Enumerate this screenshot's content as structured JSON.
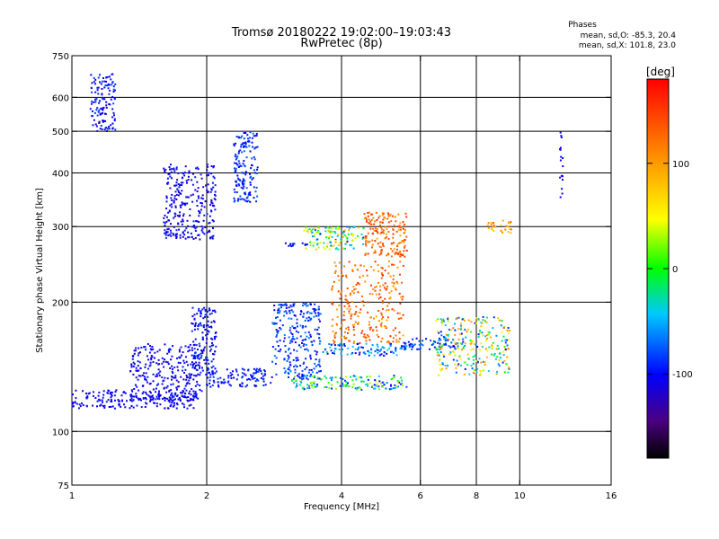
{
  "chart_data": {
    "type": "scatter",
    "title": "Tromsø 20180222 19:02:00–19:03:43",
    "subtitle": "RwPretec (8p)",
    "xlabel": "Frequency [MHz]",
    "ylabel": "Stationary phase Virtual Height [km]",
    "x_scale": "log",
    "y_scale": "log",
    "xlim": [
      1,
      16
    ],
    "ylim": [
      75,
      750
    ],
    "x_ticks": [
      1,
      2,
      4,
      6,
      8,
      10,
      16
    ],
    "y_ticks": [
      75,
      100,
      200,
      300,
      400,
      500,
      600,
      750
    ],
    "x_grid": [
      2,
      4,
      6,
      8,
      10
    ],
    "y_grid": [
      100,
      200,
      300,
      400,
      500,
      600
    ],
    "grid": true,
    "stats": {
      "heading": "Phases",
      "line_o": "mean, sd,O: -85.3, 20.4",
      "line_x": "mean, sd,X: 101.8, 23.0"
    },
    "colorbar": {
      "label": "[deg]",
      "min": -180,
      "max": 180,
      "ticks": [
        100,
        0,
        -100
      ],
      "tick_labels": [
        "100",
        "0",
        "-100"
      ]
    },
    "point_groups": [
      {
        "f": [
          1.0,
          1.9
        ],
        "h": [
          113,
          125
        ],
        "phase": [
          -120,
          -90
        ]
      },
      {
        "f": [
          1.35,
          1.95
        ],
        "h": [
          118,
          160
        ],
        "phase": [
          -120,
          -90
        ]
      },
      {
        "f": [
          1.85,
          2.1
        ],
        "h": [
          135,
          195
        ],
        "phase": [
          -120,
          -80
        ]
      },
      {
        "f": [
          2.0,
          2.8
        ],
        "h": [
          127,
          140
        ],
        "phase": [
          -110,
          -80
        ]
      },
      {
        "f": [
          2.8,
          3.6
        ],
        "h": [
          132,
          200
        ],
        "phase": [
          -110,
          -60
        ]
      },
      {
        "f": [
          3.1,
          5.6
        ],
        "h": [
          125,
          135
        ],
        "phase": [
          -110,
          40
        ]
      },
      {
        "f": [
          3.6,
          5.6
        ],
        "h": [
          150,
          160
        ],
        "phase": [
          -110,
          -30
        ]
      },
      {
        "f": [
          3.8,
          5.5
        ],
        "h": [
          160,
          250
        ],
        "phase": [
          90,
          160
        ]
      },
      {
        "f": [
          4.5,
          5.6
        ],
        "h": [
          255,
          325
        ],
        "phase": [
          90,
          160
        ]
      },
      {
        "f": [
          5.5,
          7.5
        ],
        "h": [
          155,
          165
        ],
        "phase": [
          -110,
          -60
        ]
      },
      {
        "f": [
          6.5,
          9.5
        ],
        "h": [
          135,
          185
        ],
        "phase": [
          -100,
          120
        ]
      },
      {
        "f": [
          1.6,
          2.1
        ],
        "h": [
          280,
          420
        ],
        "phase": [
          -120,
          -90
        ]
      },
      {
        "f": [
          2.3,
          2.6
        ],
        "h": [
          340,
          500
        ],
        "phase": [
          -110,
          -70
        ]
      },
      {
        "f": [
          1.6,
          1.75
        ],
        "h": [
          280,
          295
        ],
        "phase": [
          -110,
          -80
        ]
      },
      {
        "f": [
          3.0,
          3.4
        ],
        "h": [
          270,
          275
        ],
        "phase": [
          -110,
          -90
        ]
      },
      {
        "f": [
          3.3,
          4.5
        ],
        "h": [
          265,
          300
        ],
        "phase": [
          -100,
          90
        ]
      },
      {
        "f": [
          8.4,
          9.6
        ],
        "h": [
          290,
          310
        ],
        "phase": [
          60,
          130
        ]
      },
      {
        "f": [
          1.1,
          1.25
        ],
        "h": [
          500,
          680
        ],
        "phase": [
          -120,
          -80
        ]
      },
      {
        "f": [
          12.3,
          12.5
        ],
        "h": [
          350,
          500
        ],
        "phase": [
          -120,
          -100
        ]
      }
    ]
  }
}
